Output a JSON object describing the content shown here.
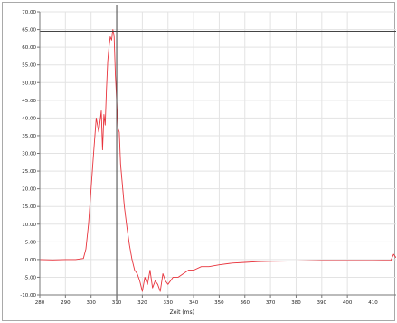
{
  "chart_data": {
    "type": "line",
    "title": "",
    "xlabel": "Zeit (ms)",
    "ylabel": "",
    "xlim": [
      280,
      419
    ],
    "ylim": [
      -10,
      70
    ],
    "x_ticks": [
      280,
      290,
      300,
      310,
      320,
      330,
      340,
      350,
      360,
      370,
      380,
      390,
      400,
      410
    ],
    "x_tick_labels": [
      "280",
      "290",
      "300",
      "310",
      "320",
      "330",
      "340",
      "350",
      "360",
      "370",
      "380",
      "390",
      "400",
      "410"
    ],
    "y_ticks": [
      -10,
      -5,
      0,
      5,
      10,
      15,
      20,
      25,
      30,
      35,
      40,
      45,
      50,
      55,
      60,
      65,
      70
    ],
    "y_tick_labels": [
      "-10.00",
      "-5.00",
      "0.00",
      "5.00",
      "10.00",
      "15.00",
      "20.00",
      "25.00",
      "30.00",
      "35.00",
      "40.00",
      "45.00",
      "50.00",
      "55.00",
      "60.00",
      "65.00",
      "70.00"
    ],
    "grid": true,
    "cursor": {
      "x": 310,
      "y": 64.5
    },
    "series": [
      {
        "color": "#e8333c",
        "x": [
          280,
          285,
          290,
          294,
          297,
          298,
          299,
          300,
          301,
          302,
          303,
          304,
          304.5,
          305,
          305.5,
          306,
          306.5,
          307,
          307.5,
          308,
          308.5,
          309,
          309.5,
          310,
          310.5,
          311,
          311.5,
          312,
          313,
          314,
          315,
          316,
          317,
          318,
          319,
          320,
          321,
          322,
          323,
          324,
          325,
          326,
          327,
          328,
          329,
          330,
          332,
          334,
          336,
          338,
          340,
          343,
          346,
          350,
          355,
          360,
          365,
          370,
          380,
          390,
          400,
          410,
          417,
          418,
          419
        ],
        "y": [
          0,
          -0.1,
          0,
          0,
          0.3,
          3,
          10,
          20,
          30,
          40,
          36,
          42,
          31,
          41,
          38,
          48,
          56,
          60,
          63,
          62,
          65,
          63,
          52,
          45,
          37,
          36,
          27,
          23,
          15,
          9,
          4,
          0,
          -3,
          -4,
          -6,
          -9,
          -5,
          -7,
          -3,
          -8,
          -6,
          -7,
          -9,
          -4,
          -6,
          -7,
          -5,
          -5,
          -4,
          -3,
          -3,
          -2,
          -2,
          -1.5,
          -1,
          -0.8,
          -0.6,
          -0.5,
          -0.4,
          -0.3,
          -0.3,
          -0.3,
          -0.2,
          1.5,
          0.5
        ]
      }
    ]
  }
}
